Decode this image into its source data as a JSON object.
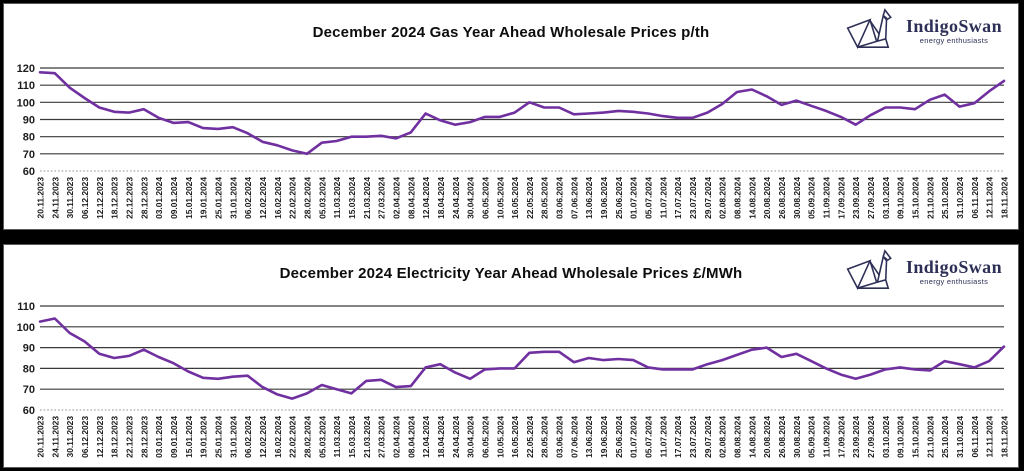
{
  "brand": {
    "name": "IndigoSwan",
    "tagline": "energy enthusiasts",
    "color": "#2d2f57"
  },
  "chart_data": [
    {
      "type": "line",
      "title": "December 2024 Gas Year Ahead Wholesale Prices p/th",
      "unit": "p/th",
      "ylim": [
        60,
        120
      ],
      "yticks": [
        120,
        110,
        100,
        90,
        80,
        70,
        60
      ],
      "grid": "horizontal-solid, bottom axis dashed ticks",
      "legend": "none",
      "line_color": "#7030A0",
      "categories": [
        "20.11.2023",
        "24.11.2023",
        "30.11.2023",
        "06.12.2023",
        "12.12.2023",
        "18.12.2023",
        "22.12.2023",
        "28.12.2023",
        "03.01.2024",
        "09.01.2024",
        "15.01.2024",
        "19.01.2024",
        "25.01.2024",
        "31.01.2024",
        "06.02.2024",
        "12.02.2024",
        "16.02.2024",
        "22.02.2024",
        "28.02.2024",
        "05.03.2024",
        "11.03.2024",
        "15.03.2024",
        "21.03.2024",
        "27.03.2024",
        "02.04.2024",
        "08.04.2024",
        "12.04.2024",
        "18.04.2024",
        "24.04.2024",
        "30.04.2024",
        "06.05.2024",
        "10.05.2024",
        "16.05.2024",
        "22.05.2024",
        "28.05.2024",
        "03.06.2024",
        "07.06.2024",
        "13.06.2024",
        "19.06.2024",
        "25.06.2024",
        "01.07.2024",
        "05.07.2024",
        "11.07.2024",
        "17.07.2024",
        "23.07.2024",
        "29.07.2024",
        "02.08.2024",
        "08.08.2024",
        "14.08.2024",
        "20.08.2024",
        "26.08.2024",
        "30.08.2024",
        "05.09.2024",
        "11.09.2024",
        "17.09.2024",
        "23.09.2024",
        "27.09.2024",
        "03.10.2024",
        "09.10.2024",
        "15.10.2024",
        "21.10.2024",
        "25.10.2024",
        "31.10.2024",
        "06.11.2024",
        "12.11.2024",
        "18.11.2024"
      ],
      "values": [
        117.5,
        117,
        108.5,
        102.5,
        97,
        94.5,
        94,
        96,
        91,
        88,
        88.5,
        85,
        84.5,
        85.5,
        82,
        77,
        75,
        72,
        70,
        76.5,
        77.5,
        80,
        80,
        80.5,
        79,
        82.5,
        93.5,
        89.5,
        87,
        88.5,
        91.5,
        91.5,
        94,
        100,
        97,
        97,
        93,
        93.5,
        94,
        95,
        94.5,
        93.5,
        92,
        91,
        91,
        94,
        99,
        106,
        107.5,
        103.5,
        98.5,
        101,
        98,
        95,
        91.5,
        87,
        92.5,
        97,
        97,
        96,
        101.5,
        104.5,
        97.5,
        99.5,
        106.5,
        112.5
      ]
    },
    {
      "type": "line",
      "title": "December 2024 Electricity Year Ahead Wholesale Prices £/MWh",
      "unit": "£/MWh",
      "ylim": [
        60,
        110
      ],
      "yticks": [
        110,
        100,
        90,
        80,
        70,
        60
      ],
      "grid": "horizontal-solid, bottom axis dashed ticks",
      "legend": "none",
      "line_color": "#7030A0",
      "categories": [
        "20.11.2023",
        "24.11.2023",
        "30.11.2023",
        "06.12.2023",
        "12.12.2023",
        "18.12.2023",
        "22.12.2023",
        "28.12.2023",
        "03.01.2024",
        "09.01.2024",
        "15.01.2024",
        "19.01.2024",
        "25.01.2024",
        "31.01.2024",
        "06.02.2024",
        "12.02.2024",
        "16.02.2024",
        "22.02.2024",
        "28.02.2024",
        "05.03.2024",
        "11.03.2024",
        "15.03.2024",
        "21.03.2024",
        "27.03.2024",
        "02.04.2024",
        "08.04.2024",
        "12.04.2024",
        "18.04.2024",
        "24.04.2024",
        "30.04.2024",
        "06.05.2024",
        "10.05.2024",
        "16.05.2024",
        "22.05.2024",
        "28.05.2024",
        "03.06.2024",
        "07.06.2024",
        "13.06.2024",
        "19.06.2024",
        "25.06.2024",
        "01.07.2024",
        "05.07.2024",
        "11.07.2024",
        "17.07.2024",
        "23.07.2024",
        "29.07.2024",
        "02.08.2024",
        "08.08.2024",
        "14.08.2024",
        "20.08.2024",
        "26.08.2024",
        "30.08.2024",
        "05.09.2024",
        "11.09.2024",
        "17.09.2024",
        "23.09.2024",
        "27.09.2024",
        "03.10.2024",
        "09.10.2024",
        "15.10.2024",
        "21.10.2024",
        "25.10.2024",
        "31.10.2024",
        "06.11.2024",
        "12.11.2024",
        "18.11.2024"
      ],
      "values": [
        102.5,
        104,
        97,
        93,
        87,
        85,
        86,
        89,
        85.5,
        82.5,
        78.5,
        75.5,
        75,
        76,
        76.5,
        71,
        67.5,
        65.5,
        68,
        72,
        70,
        68,
        74,
        74.5,
        71,
        71.5,
        80.5,
        82,
        78,
        75,
        79.5,
        80,
        80,
        87.5,
        88,
        88,
        83,
        85,
        84,
        84.5,
        84,
        80.5,
        79.5,
        79.5,
        79.5,
        82,
        84,
        86.5,
        89,
        90,
        85.5,
        87,
        83.5,
        80,
        77,
        75,
        77,
        79.5,
        80.5,
        79.5,
        79,
        83.5,
        82,
        80.5,
        83.5,
        90.5
      ]
    }
  ]
}
